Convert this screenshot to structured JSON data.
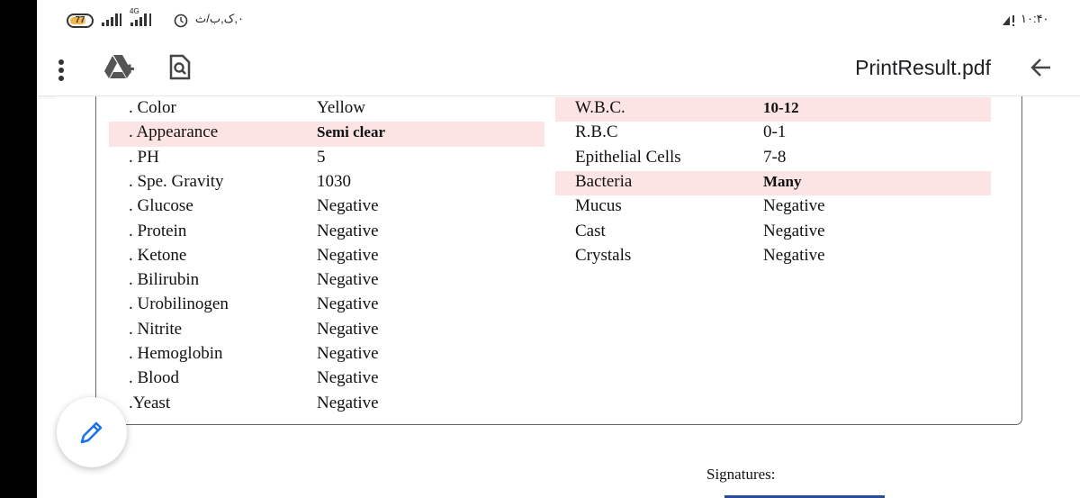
{
  "status_bar": {
    "battery_level": "77",
    "network_type": "4G",
    "left_text": "۰,ک,ب/ث",
    "time": "۱۰:۴۰",
    "colors": {
      "battery_fill": "#f5b64a"
    }
  },
  "header": {
    "title": "PrintResult.pdf",
    "icons": [
      "more-vert-icon",
      "drive-add-icon",
      "search-document-icon",
      "back-arrow-icon"
    ]
  },
  "results": {
    "left_table": [
      {
        "label": ". Color",
        "value": "Yellow",
        "highlighted": false,
        "bold": false
      },
      {
        "label": ". Appearance",
        "value": "Semi clear",
        "highlighted": true,
        "bold": true
      },
      {
        "label": ". PH",
        "value": "5",
        "highlighted": false,
        "bold": false
      },
      {
        "label": ". Spe. Gravity",
        "value": "1030",
        "highlighted": false,
        "bold": false
      },
      {
        "label": ". Glucose",
        "value": "Negative",
        "highlighted": false,
        "bold": false
      },
      {
        "label": ". Protein",
        "value": "Negative",
        "highlighted": false,
        "bold": false
      },
      {
        "label": ". Ketone",
        "value": "Negative",
        "highlighted": false,
        "bold": false
      },
      {
        "label": ". Bilirubin",
        "value": "Negative",
        "highlighted": false,
        "bold": false
      },
      {
        "label": ". Urobilinogen",
        "value": "Negative",
        "highlighted": false,
        "bold": false
      },
      {
        "label": ". Nitrite",
        "value": "Negative",
        "highlighted": false,
        "bold": false
      },
      {
        "label": ". Hemoglobin",
        "value": "Negative",
        "highlighted": false,
        "bold": false
      },
      {
        "label": ". Blood",
        "value": "Negative",
        "highlighted": false,
        "bold": false
      },
      {
        "label": ".Yeast",
        "value": "Negative",
        "highlighted": false,
        "bold": false
      }
    ],
    "right_table": [
      {
        "label": "W.B.C.",
        "value": "10-12",
        "highlighted": true,
        "bold": true
      },
      {
        "label": "R.B.C",
        "value": "0-1",
        "highlighted": false,
        "bold": false
      },
      {
        "label": "Epithelial Cells",
        "value": "7-8",
        "highlighted": false,
        "bold": false
      },
      {
        "label": "Bacteria",
        "value": "Many",
        "highlighted": true,
        "bold": true
      },
      {
        "label": "Mucus",
        "value": "Negative",
        "highlighted": false,
        "bold": false
      },
      {
        "label": "Cast",
        "value": "Negative",
        "highlighted": false,
        "bold": false
      },
      {
        "label": "Crystals",
        "value": "Negative",
        "highlighted": false,
        "bold": false
      }
    ],
    "highlight_color": "#fde4e4"
  },
  "footer": {
    "signatures_label": "Signatures:"
  },
  "fab": {
    "icon": "edit-pencil-icon"
  }
}
